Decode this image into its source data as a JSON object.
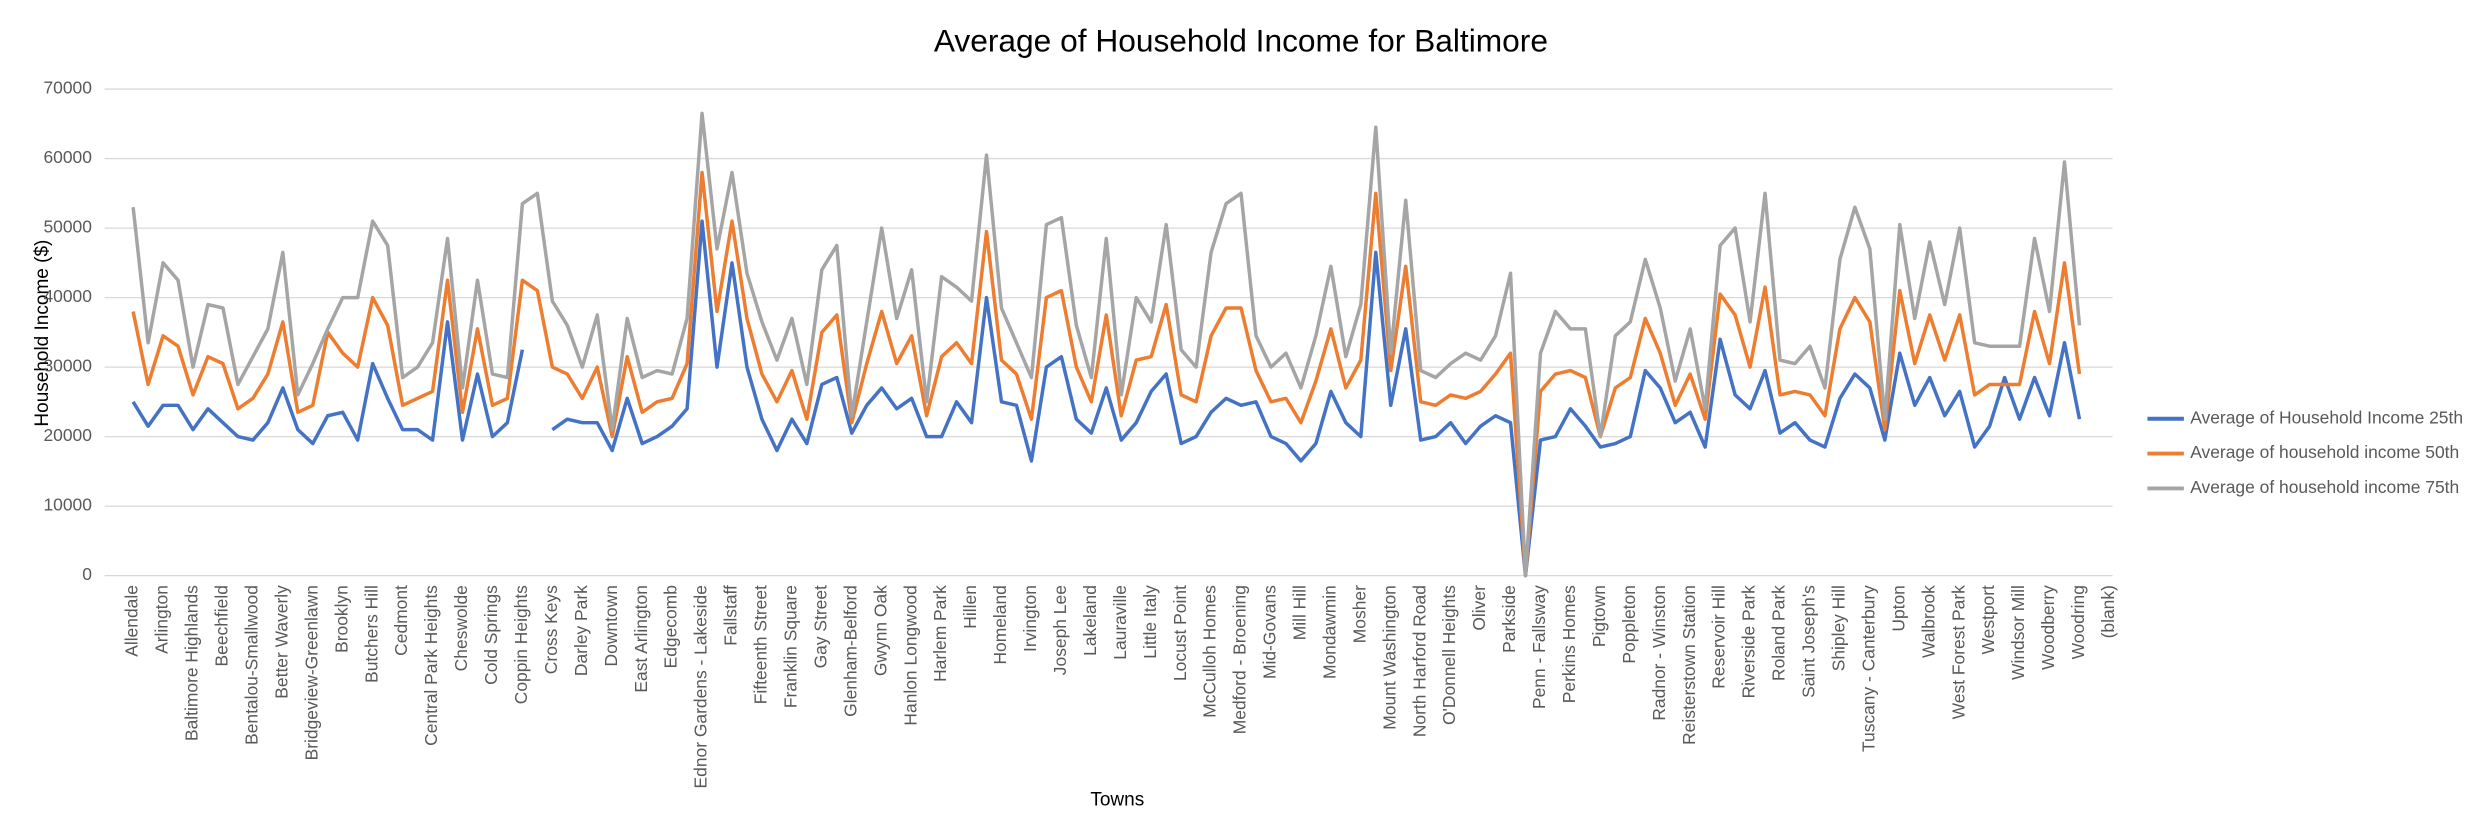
{
  "chart_data": {
    "type": "line",
    "title": "Average of Household Income for Baltimore",
    "x_label": "Towns",
    "y_label": "Household Income ($)",
    "categories": [
      "Allendale",
      null,
      "Arlington",
      null,
      "Baltimore Highlands",
      null,
      "Beechfield",
      null,
      "Bentalou-Smallwood",
      null,
      "Better Waverly",
      null,
      "Bridgeview-Greenlawn",
      null,
      "Brooklyn",
      null,
      "Butchers Hill",
      null,
      "Cedmont",
      null,
      "Central Park Heights",
      null,
      "Cheswolde",
      null,
      "Cold Springs",
      null,
      "Coppin Heights",
      null,
      "Cross Keys",
      null,
      "Darley Park",
      null,
      "Downtown",
      null,
      "East Arlington",
      null,
      "Edgecomb",
      null,
      "Ednor Gardens - Lakeside",
      null,
      "Fallstaff",
      null,
      "Fifteenth Street",
      null,
      "Franklin Square",
      null,
      "Gay Street",
      null,
      "Glenham-Belford",
      null,
      "Gwynn Oak",
      null,
      "Hanlon Longwood",
      null,
      "Harlem Park",
      null,
      "Hillen",
      null,
      "Homeland",
      null,
      "Irvington",
      null,
      "Joseph Lee",
      null,
      "Lakeland",
      null,
      "Lauraville",
      null,
      "Little Italy",
      null,
      "Locust Point",
      null,
      "McCulloh Homes",
      null,
      "Medford - Broening",
      null,
      "Mid-Govans",
      null,
      "Mill Hill",
      null,
      "Mondawmin",
      null,
      "Mosher",
      null,
      "Mount Washington",
      null,
      "North Harford Road",
      null,
      "O'Donnell Heights",
      null,
      "Oliver",
      null,
      "Parkside",
      null,
      "Penn - Fallsway",
      null,
      "Perkins Homes",
      null,
      "Pigtown",
      null,
      "Poppleton",
      null,
      "Radnor - Winston",
      null,
      "Reisterstown Station",
      null,
      "Reservoir Hill",
      null,
      "Riverside Park",
      null,
      "Roland Park",
      null,
      "Saint Joseph's",
      null,
      "Shipley Hill",
      null,
      "Tuscany - Canterbury",
      null,
      "Upton",
      null,
      "Walbrook",
      null,
      "West Forest Park",
      null,
      "Westport",
      null,
      "Windsor Mill",
      null,
      "Woodberry",
      null,
      "Woodring",
      null,
      "(blank)"
    ],
    "series": [
      {
        "name": "Average of Household Income 25th",
        "color": "#4472c4",
        "values": [
          25000,
          21500,
          24500,
          24500,
          21000,
          24000,
          22000,
          20000,
          19500,
          22000,
          27000,
          21000,
          19000,
          23000,
          23500,
          19500,
          30500,
          25500,
          21000,
          21000,
          19500,
          36500,
          19500,
          29000,
          20000,
          22000,
          32500,
          null,
          21000,
          22500,
          22000,
          22000,
          18000,
          25500,
          19000,
          20000,
          21500,
          24000,
          51000,
          30000,
          45000,
          30000,
          22500,
          18000,
          22500,
          19000,
          27500,
          28500,
          20500,
          24500,
          27000,
          24000,
          25500,
          20000,
          20000,
          25000,
          22000,
          40000,
          25000,
          24500,
          16500,
          30000,
          31500,
          22500,
          20500,
          27000,
          19500,
          22000,
          26500,
          29000,
          19000,
          20000,
          23500,
          25500,
          24500,
          25000,
          20000,
          19000,
          16500,
          19000,
          26500,
          22000,
          20000,
          46500,
          24500,
          35500,
          19500,
          20000,
          22000,
          19000,
          21500,
          23000,
          22000,
          0,
          19500,
          20000,
          24000,
          21500,
          18500,
          19000,
          20000,
          29500,
          27000,
          22000,
          23500,
          18500,
          34000,
          26000,
          24000,
          29500,
          20500,
          22000,
          19500,
          18500,
          25500,
          29000,
          27000,
          19500,
          32000,
          24500,
          28500,
          23000,
          26500,
          18500,
          21500,
          28500,
          22500,
          28500,
          23000,
          33500,
          22500,
          null,
          null
        ]
      },
      {
        "name": "Average of household income 50th",
        "color": "#ed7d31",
        "values": [
          38000,
          27500,
          34500,
          33000,
          26000,
          31500,
          30500,
          24000,
          25500,
          29000,
          36500,
          23500,
          24500,
          35000,
          32000,
          30000,
          40000,
          36000,
          24500,
          25500,
          26500,
          42500,
          23500,
          35500,
          24500,
          25500,
          42500,
          41000,
          30000,
          29000,
          25500,
          30000,
          20000,
          31500,
          23500,
          25000,
          25500,
          30500,
          58000,
          38000,
          51000,
          37000,
          29000,
          25000,
          29500,
          22500,
          35000,
          37500,
          22000,
          30500,
          38000,
          30500,
          34500,
          23000,
          31500,
          33500,
          30500,
          49500,
          31000,
          29000,
          22500,
          40000,
          41000,
          30000,
          25000,
          37500,
          23000,
          31000,
          31500,
          39000,
          26000,
          25000,
          34500,
          38500,
          38500,
          29500,
          25000,
          25500,
          22000,
          28000,
          35500,
          27000,
          31000,
          55000,
          29500,
          44500,
          25000,
          24500,
          26000,
          25500,
          26500,
          29000,
          32000,
          0,
          26500,
          29000,
          29500,
          28500,
          20000,
          27000,
          28500,
          37000,
          32000,
          24500,
          29000,
          22500,
          40500,
          37500,
          30000,
          41500,
          26000,
          26500,
          26000,
          23000,
          35500,
          40000,
          36500,
          21000,
          41000,
          30500,
          37500,
          31000,
          37500,
          26000,
          27500,
          27500,
          27500,
          38000,
          30500,
          45000,
          29000,
          null,
          null
        ]
      },
      {
        "name": "Average of household income 75th",
        "color": "#a5a5a5",
        "values": [
          53000,
          33500,
          45000,
          42500,
          30000,
          39000,
          38500,
          27500,
          31500,
          35500,
          46500,
          26000,
          30500,
          35500,
          40000,
          40000,
          51000,
          47500,
          28500,
          30000,
          33500,
          48500,
          27000,
          42500,
          29000,
          28500,
          53500,
          55000,
          39500,
          36000,
          30000,
          37500,
          21000,
          37000,
          28500,
          29500,
          29000,
          37000,
          66500,
          47000,
          58000,
          43500,
          36500,
          31000,
          37000,
          27500,
          44000,
          47500,
          23000,
          36500,
          50000,
          37000,
          44000,
          25000,
          43000,
          41500,
          39500,
          60500,
          38500,
          33500,
          28500,
          50500,
          51500,
          36000,
          28500,
          48500,
          26000,
          40000,
          36500,
          50500,
          32500,
          30000,
          46500,
          53500,
          55000,
          34500,
          30000,
          32000,
          27000,
          34500,
          44500,
          31500,
          39000,
          64500,
          32000,
          54000,
          29500,
          28500,
          30500,
          32000,
          31000,
          34500,
          43500,
          0,
          32000,
          38000,
          35500,
          35500,
          20000,
          34500,
          36500,
          45500,
          38500,
          28000,
          35500,
          24000,
          47500,
          50000,
          36500,
          55000,
          31000,
          30500,
          33000,
          27000,
          45500,
          53000,
          47000,
          22500,
          50500,
          37000,
          48000,
          39000,
          50000,
          33500,
          33000,
          33000,
          33000,
          48500,
          38000,
          59500,
          36000,
          null,
          null
        ]
      }
    ],
    "ylim": [
      0,
      70000
    ],
    "yticks": [
      0,
      10000,
      20000,
      30000,
      40000,
      50000,
      60000,
      70000
    ],
    "grid": true,
    "legend": "right"
  }
}
